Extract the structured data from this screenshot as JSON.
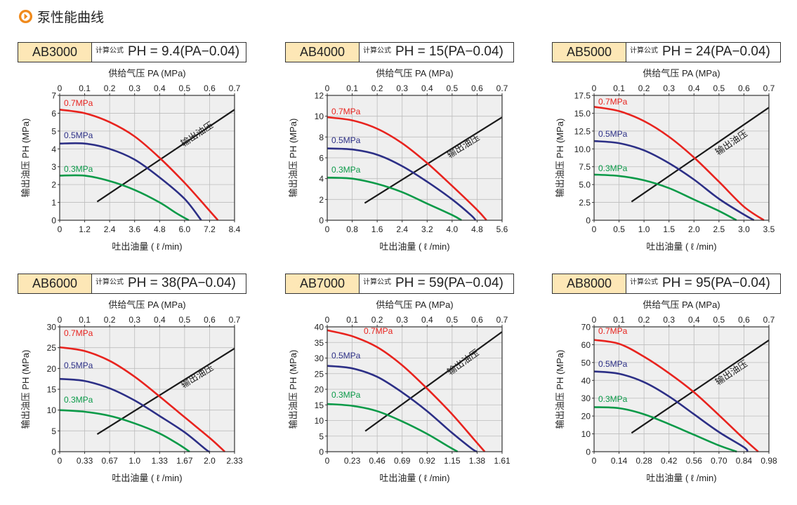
{
  "page": {
    "title": "泵性能曲线"
  },
  "colors": {
    "p07": "#e8231e",
    "p05": "#2c2f86",
    "p03": "#0a9a48",
    "out": "#1a1a1a",
    "plot_bg": "#efefef",
    "grid": "#bdbdbd",
    "model_bg": "#fde7b6",
    "icon": "#f08a1c"
  },
  "common": {
    "formula_label": "计算公式",
    "top_axis_label": "供给气压 PA (MPa)",
    "top_ticks": [
      "0",
      "0.1",
      "0.2",
      "0.3",
      "0.4",
      "0.5",
      "0.6",
      "0.7"
    ],
    "y_axis_label": "输出油压 PH (MPa)",
    "x_axis_label": "吐出油量 ( ℓ /min)",
    "output_line_label": "输出油压",
    "series_labels": [
      "0.7MPa",
      "0.5MPa",
      "0.3MPa"
    ]
  },
  "chart_data": [
    {
      "model": "AB3000",
      "formula": "PH = 9.4(PA−0.04)",
      "type": "line",
      "x_ticks": [
        "0",
        "1.2",
        "2.4",
        "3.6",
        "4.8",
        "6.0",
        "7.2",
        "8.4"
      ],
      "xlim": [
        0,
        8.4
      ],
      "y_ticks": [
        "0",
        "1",
        "2",
        "3",
        "4",
        "5",
        "6",
        "7"
      ],
      "ylim": [
        0,
        7
      ],
      "series": [
        {
          "name": "0.7MPa",
          "points": [
            [
              0,
              6.2
            ],
            [
              1.2,
              6.0
            ],
            [
              2.4,
              5.5
            ],
            [
              3.6,
              4.7
            ],
            [
              4.8,
              3.5
            ],
            [
              6.0,
              2.1
            ],
            [
              7.0,
              0.8
            ],
            [
              7.6,
              0
            ]
          ]
        },
        {
          "name": "0.5MPa",
          "points": [
            [
              0,
              4.3
            ],
            [
              1.2,
              4.3
            ],
            [
              2.4,
              4.0
            ],
            [
              3.6,
              3.4
            ],
            [
              4.8,
              2.4
            ],
            [
              6.0,
              1.2
            ],
            [
              6.8,
              0
            ]
          ]
        },
        {
          "name": "0.3MPa",
          "points": [
            [
              0,
              2.5
            ],
            [
              1.2,
              2.5
            ],
            [
              2.4,
              2.2
            ],
            [
              3.6,
              1.7
            ],
            [
              4.8,
              1.0
            ],
            [
              5.6,
              0.4
            ],
            [
              6.2,
              0
            ]
          ]
        }
      ],
      "output_line": [
        [
          1.8,
          1.04
        ],
        [
          8.4,
          6.2
        ]
      ]
    },
    {
      "model": "AB4000",
      "formula": "PH = 15(PA−0.04)",
      "type": "line",
      "x_ticks": [
        "0",
        "0.8",
        "1.6",
        "2.4",
        "3.2",
        "4.0",
        "4.8",
        "5.6"
      ],
      "xlim": [
        0,
        5.6
      ],
      "y_ticks": [
        "0",
        "2",
        "4",
        "6",
        "8",
        "10",
        "12"
      ],
      "ylim": [
        0,
        12
      ],
      "series": [
        {
          "name": "0.7MPa",
          "points": [
            [
              0,
              9.9
            ],
            [
              0.8,
              9.6
            ],
            [
              1.6,
              8.8
            ],
            [
              2.4,
              7.4
            ],
            [
              3.2,
              5.5
            ],
            [
              4.0,
              3.3
            ],
            [
              4.8,
              1.0
            ],
            [
              5.1,
              0
            ]
          ]
        },
        {
          "name": "0.5MPa",
          "points": [
            [
              0,
              6.9
            ],
            [
              0.8,
              6.8
            ],
            [
              1.6,
              6.3
            ],
            [
              2.4,
              5.2
            ],
            [
              3.2,
              3.7
            ],
            [
              4.0,
              2.0
            ],
            [
              4.6,
              0.5
            ],
            [
              4.75,
              0
            ]
          ]
        },
        {
          "name": "0.3MPa",
          "points": [
            [
              0,
              4.1
            ],
            [
              0.8,
              4.0
            ],
            [
              1.6,
              3.5
            ],
            [
              2.4,
              2.7
            ],
            [
              3.2,
              1.6
            ],
            [
              4.0,
              0.5
            ],
            [
              4.3,
              0
            ]
          ]
        }
      ],
      "output_line": [
        [
          1.2,
          1.65
        ],
        [
          5.6,
          9.9
        ]
      ]
    },
    {
      "model": "AB5000",
      "formula": "PH = 24(PA−0.04)",
      "type": "line",
      "x_ticks": [
        "0",
        "0.5",
        "1.0",
        "1.5",
        "2.0",
        "2.5",
        "3.0",
        "3.5"
      ],
      "xlim": [
        0,
        3.5
      ],
      "y_ticks": [
        "0",
        "2.5",
        "5.0",
        "7.5",
        "10.0",
        "12.5",
        "15.0",
        "17.5"
      ],
      "ylim": [
        0,
        17.5
      ],
      "series": [
        {
          "name": "0.7MPa",
          "points": [
            [
              0,
              15.9
            ],
            [
              0.5,
              15.3
            ],
            [
              1.0,
              13.9
            ],
            [
              1.5,
              11.7
            ],
            [
              2.0,
              8.8
            ],
            [
              2.5,
              5.4
            ],
            [
              3.0,
              1.9
            ],
            [
              3.4,
              0
            ]
          ]
        },
        {
          "name": "0.5MPa",
          "points": [
            [
              0,
              11.1
            ],
            [
              0.5,
              10.8
            ],
            [
              1.0,
              9.8
            ],
            [
              1.5,
              8.0
            ],
            [
              2.0,
              5.7
            ],
            [
              2.5,
              3.0
            ],
            [
              3.0,
              0.8
            ],
            [
              3.2,
              0
            ]
          ]
        },
        {
          "name": "0.3MPa",
          "points": [
            [
              0,
              6.4
            ],
            [
              0.5,
              6.2
            ],
            [
              1.0,
              5.6
            ],
            [
              1.5,
              4.5
            ],
            [
              2.0,
              2.9
            ],
            [
              2.5,
              1.3
            ],
            [
              2.85,
              0
            ]
          ]
        }
      ],
      "output_line": [
        [
          0.75,
          2.6
        ],
        [
          3.5,
          15.8
        ]
      ]
    },
    {
      "model": "AB6000",
      "formula": "PH = 38(PA−0.04)",
      "type": "line",
      "x_ticks": [
        "0",
        "0.33",
        "0.67",
        "1.0",
        "1.33",
        "1.67",
        "2.0",
        "2.33"
      ],
      "xlim": [
        0,
        2.33
      ],
      "y_ticks": [
        "0",
        "5",
        "10",
        "15",
        "20",
        "25",
        "30"
      ],
      "ylim": [
        0,
        30
      ],
      "series": [
        {
          "name": "0.7MPa",
          "points": [
            [
              0,
              25.1
            ],
            [
              0.33,
              24.2
            ],
            [
              0.67,
              21.8
            ],
            [
              1.0,
              18.0
            ],
            [
              1.33,
              13.3
            ],
            [
              1.67,
              8.2
            ],
            [
              2.0,
              3.3
            ],
            [
              2.2,
              0
            ]
          ]
        },
        {
          "name": "0.5MPa",
          "points": [
            [
              0,
              17.5
            ],
            [
              0.33,
              17.0
            ],
            [
              0.67,
              15.2
            ],
            [
              1.0,
              12.3
            ],
            [
              1.33,
              8.6
            ],
            [
              1.67,
              4.6
            ],
            [
              1.95,
              0.5
            ],
            [
              2.0,
              0
            ]
          ]
        },
        {
          "name": "0.3MPa",
          "points": [
            [
              0,
              10.0
            ],
            [
              0.33,
              9.6
            ],
            [
              0.67,
              8.6
            ],
            [
              1.0,
              6.8
            ],
            [
              1.33,
              4.4
            ],
            [
              1.6,
              1.6
            ],
            [
              1.73,
              0
            ]
          ]
        }
      ],
      "output_line": [
        [
          0.5,
          4.2
        ],
        [
          2.33,
          24.8
        ]
      ]
    },
    {
      "model": "AB7000",
      "formula": "PH = 59(PA−0.04)",
      "type": "line",
      "x_ticks": [
        "0",
        "0.23",
        "0.46",
        "0.69",
        "0.92",
        "1.15",
        "1.38",
        "1.61"
      ],
      "xlim": [
        0,
        1.61
      ],
      "y_ticks": [
        "0",
        "5",
        "10",
        "15",
        "20",
        "25",
        "30",
        "35",
        "40"
      ],
      "ylim": [
        0,
        40
      ],
      "series": [
        {
          "name": "0.7MPa",
          "points": [
            [
              0,
              38.9
            ],
            [
              0.23,
              37.0
            ],
            [
              0.46,
              33.5
            ],
            [
              0.69,
              27.7
            ],
            [
              0.92,
              20.2
            ],
            [
              1.15,
              12.0
            ],
            [
              1.35,
              4.0
            ],
            [
              1.45,
              0
            ]
          ]
        },
        {
          "name": "0.5MPa",
          "points": [
            [
              0,
              27.5
            ],
            [
              0.23,
              26.7
            ],
            [
              0.46,
              24.0
            ],
            [
              0.69,
              19.0
            ],
            [
              0.92,
              13.0
            ],
            [
              1.15,
              6.0
            ],
            [
              1.33,
              1.0
            ],
            [
              1.38,
              0
            ]
          ]
        },
        {
          "name": "0.3MPa",
          "points": [
            [
              0,
              15.3
            ],
            [
              0.23,
              14.7
            ],
            [
              0.46,
              13.0
            ],
            [
              0.69,
              9.7
            ],
            [
              0.92,
              5.7
            ],
            [
              1.1,
              2.0
            ],
            [
              1.2,
              0
            ]
          ]
        }
      ],
      "output_line": [
        [
          0.35,
          6.6
        ],
        [
          1.61,
          38.4
        ]
      ]
    },
    {
      "model": "AB8000",
      "formula": "PH = 95(PA−0.04)",
      "type": "line",
      "x_ticks": [
        "0",
        "0.14",
        "0.28",
        "0.42",
        "0.56",
        "0.70",
        "0.84",
        "0.98"
      ],
      "xlim": [
        0,
        0.98
      ],
      "y_ticks": [
        "0",
        "10",
        "20",
        "30",
        "40",
        "50",
        "60",
        "70"
      ],
      "ylim": [
        0,
        70
      ],
      "series": [
        {
          "name": "0.7MPa",
          "points": [
            [
              0,
              62.7
            ],
            [
              0.14,
              60.5
            ],
            [
              0.28,
              53.3
            ],
            [
              0.42,
              44.0
            ],
            [
              0.56,
              33.3
            ],
            [
              0.7,
              20.5
            ],
            [
              0.84,
              7.2
            ],
            [
              0.92,
              0
            ]
          ]
        },
        {
          "name": "0.5MPa",
          "points": [
            [
              0,
              45.0
            ],
            [
              0.14,
              43.7
            ],
            [
              0.28,
              39.0
            ],
            [
              0.42,
              31.0
            ],
            [
              0.56,
              21.0
            ],
            [
              0.7,
              11.0
            ],
            [
              0.84,
              2.5
            ],
            [
              0.86,
              0
            ]
          ]
        },
        {
          "name": "0.3MPa",
          "points": [
            [
              0,
              25.0
            ],
            [
              0.14,
              24.4
            ],
            [
              0.28,
              21.0
            ],
            [
              0.42,
              15.5
            ],
            [
              0.56,
              9.5
            ],
            [
              0.7,
              3.5
            ],
            [
              0.8,
              0
            ]
          ]
        }
      ],
      "output_line": [
        [
          0.21,
          10.5
        ],
        [
          0.98,
          62.5
        ]
      ]
    }
  ]
}
